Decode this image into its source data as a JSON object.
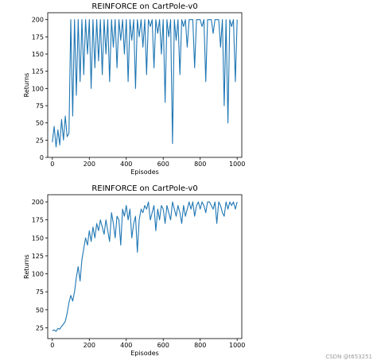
{
  "watermark": "CSDN @t653251",
  "chart_data": [
    {
      "type": "line",
      "title": "REINFORCE on CartPole-v0",
      "xlabel": "Episodes",
      "ylabel": "Returns",
      "xlim": [
        -25,
        1025
      ],
      "ylim": [
        0,
        210
      ],
      "xticks": [
        0,
        200,
        400,
        600,
        800,
        1000
      ],
      "yticks": [
        0,
        25,
        50,
        75,
        100,
        125,
        150,
        175,
        200
      ],
      "color": "#1f77b4",
      "grid": false,
      "series": [
        {
          "x": [
            0,
            10,
            20,
            30,
            40,
            50,
            60,
            70,
            80,
            90,
            100,
            110,
            120,
            130,
            140,
            150,
            160,
            170,
            180,
            190,
            200,
            210,
            220,
            230,
            240,
            250,
            260,
            270,
            280,
            290,
            300,
            310,
            320,
            330,
            340,
            350,
            360,
            370,
            380,
            390,
            400,
            410,
            420,
            430,
            440,
            450,
            460,
            470,
            480,
            490,
            500,
            510,
            520,
            530,
            540,
            550,
            560,
            570,
            580,
            590,
            600,
            610,
            620,
            630,
            640,
            650,
            660,
            670,
            680,
            690,
            700,
            710,
            720,
            730,
            740,
            750,
            760,
            770,
            780,
            790,
            800,
            810,
            820,
            830,
            840,
            850,
            860,
            870,
            880,
            890,
            900,
            910,
            920,
            930,
            940,
            950,
            960,
            970,
            980,
            990,
            1000
          ],
          "values": [
            22,
            45,
            15,
            40,
            18,
            55,
            25,
            60,
            30,
            35,
            200,
            60,
            200,
            90,
            200,
            110,
            200,
            120,
            200,
            150,
            200,
            100,
            200,
            130,
            200,
            140,
            200,
            120,
            200,
            150,
            200,
            110,
            200,
            160,
            200,
            130,
            200,
            170,
            200,
            150,
            200,
            110,
            200,
            170,
            200,
            100,
            200,
            175,
            200,
            160,
            200,
            120,
            200,
            190,
            200,
            130,
            200,
            180,
            200,
            150,
            200,
            80,
            200,
            175,
            200,
            20,
            200,
            170,
            200,
            120,
            200,
            190,
            200,
            160,
            200,
            200,
            200,
            130,
            200,
            200,
            200,
            190,
            200,
            110,
            200,
            200,
            200,
            180,
            200,
            200,
            200,
            160,
            200,
            75,
            200,
            50,
            200,
            190,
            200,
            110,
            200
          ]
        }
      ]
    },
    {
      "type": "line",
      "title": "REINFORCE on CartPole-v0",
      "xlabel": "Episodes",
      "ylabel": "Returns",
      "xlim": [
        -25,
        1025
      ],
      "ylim": [
        10,
        210
      ],
      "xticks": [
        0,
        200,
        400,
        600,
        800,
        1000
      ],
      "yticks": [
        25,
        50,
        75,
        100,
        125,
        150,
        175,
        200
      ],
      "color": "#1f77b4",
      "grid": false,
      "series": [
        {
          "x": [
            0,
            10,
            20,
            30,
            40,
            50,
            60,
            70,
            80,
            90,
            100,
            110,
            120,
            130,
            140,
            150,
            160,
            170,
            180,
            190,
            200,
            210,
            220,
            230,
            240,
            250,
            260,
            270,
            280,
            290,
            300,
            310,
            320,
            330,
            340,
            350,
            360,
            370,
            380,
            390,
            400,
            410,
            420,
            430,
            440,
            450,
            460,
            470,
            480,
            490,
            500,
            510,
            520,
            530,
            540,
            550,
            560,
            570,
            580,
            590,
            600,
            610,
            620,
            630,
            640,
            650,
            660,
            670,
            680,
            690,
            700,
            710,
            720,
            730,
            740,
            750,
            760,
            770,
            780,
            790,
            800,
            810,
            820,
            830,
            840,
            850,
            860,
            870,
            880,
            890,
            900,
            910,
            920,
            930,
            940,
            950,
            960,
            970,
            980,
            990,
            1000
          ],
          "values": [
            21,
            22,
            20,
            24,
            23,
            27,
            30,
            34,
            45,
            60,
            70,
            62,
            75,
            95,
            110,
            90,
            120,
            135,
            150,
            140,
            160,
            145,
            165,
            150,
            170,
            160,
            175,
            165,
            155,
            175,
            160,
            145,
            185,
            170,
            150,
            180,
            175,
            140,
            190,
            180,
            195,
            175,
            190,
            150,
            170,
            180,
            130,
            175,
            190,
            185,
            195,
            190,
            200,
            175,
            185,
            195,
            160,
            190,
            175,
            195,
            190,
            170,
            195,
            185,
            175,
            200,
            190,
            180,
            195,
            185,
            170,
            195,
            180,
            190,
            200,
            190,
            200,
            180,
            195,
            200,
            190,
            200,
            195,
            185,
            200,
            200,
            195,
            190,
            200,
            170,
            200,
            195,
            185,
            180,
            200,
            190,
            200,
            195,
            200,
            190,
            200
          ]
        }
      ]
    }
  ]
}
